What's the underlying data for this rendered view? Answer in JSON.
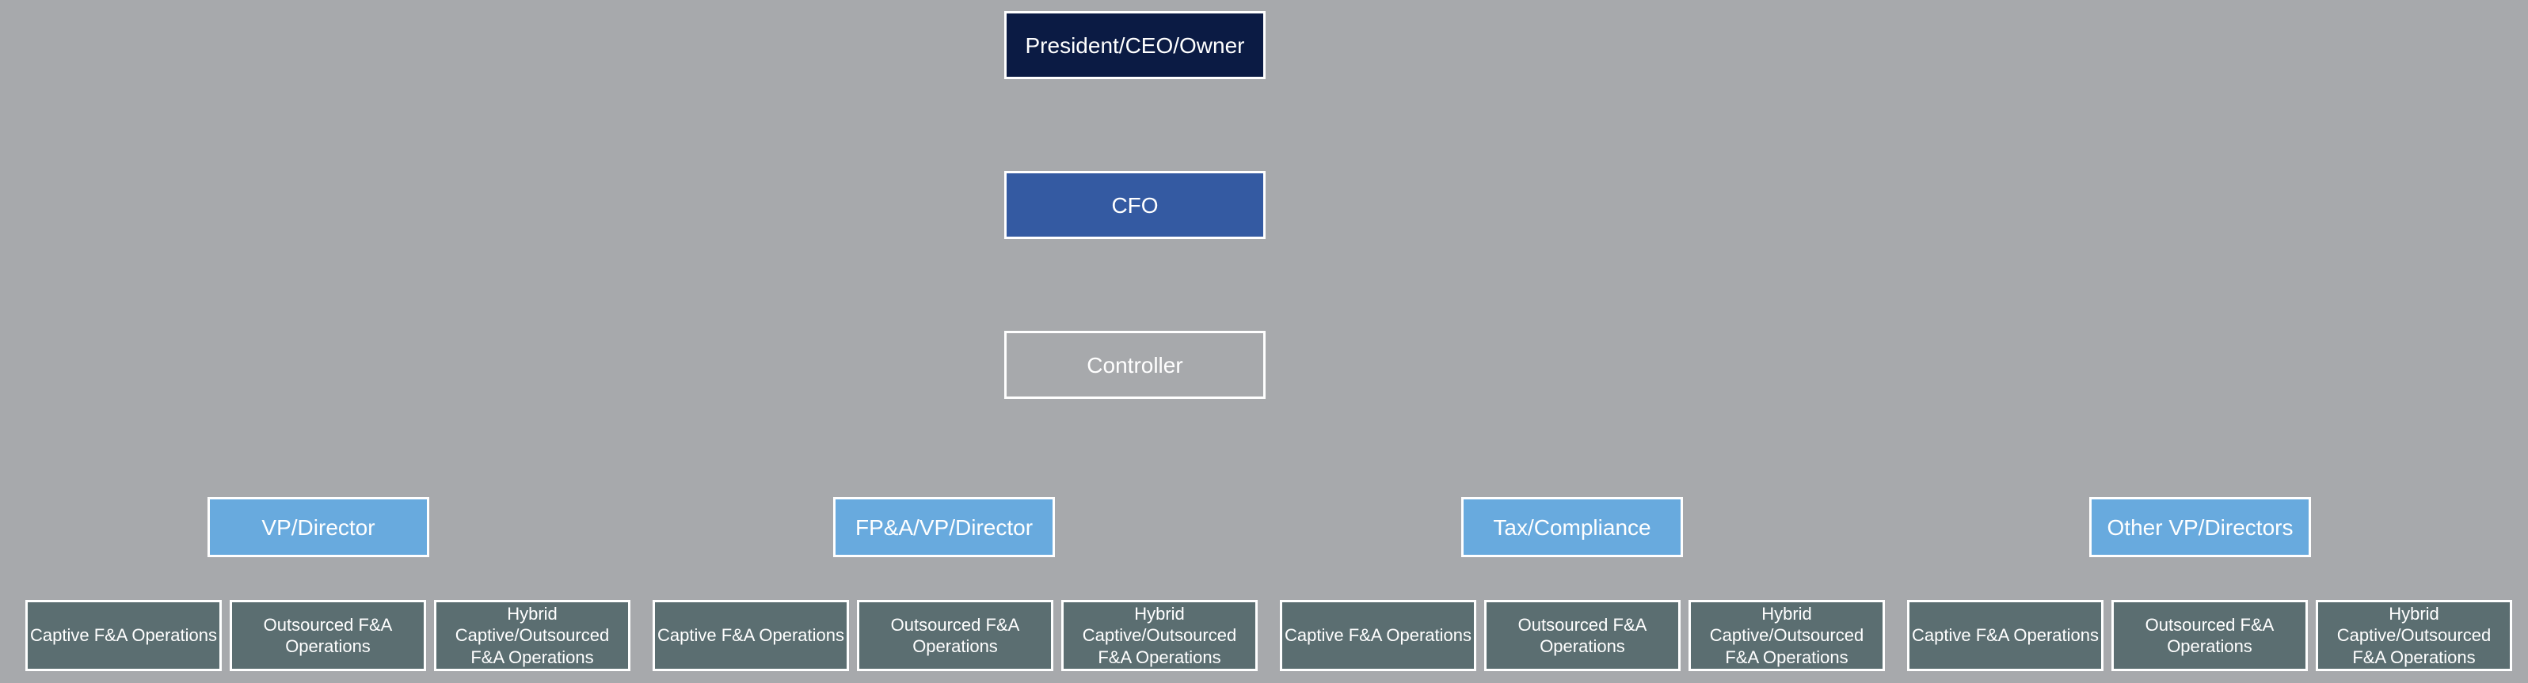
{
  "diagram": {
    "type": "tree",
    "background_color": "#a7a9ac",
    "node_border_color": "#ffffff",
    "node_border_width": 3,
    "text_color": "#ffffff",
    "top_chain_font_size": 28,
    "header_font_size": 28,
    "leaf_font_size": 22,
    "colors": {
      "ceo": "#0b1b44",
      "cfo": "#345aa2",
      "controller": "#a7a9ac",
      "group": "#68aade",
      "leaf": "#5b6e71"
    },
    "top_chain": [
      {
        "id": "ceo",
        "label": "President/CEO/Owner"
      },
      {
        "id": "cfo",
        "label": "CFO"
      },
      {
        "id": "controller",
        "label": "Controller"
      }
    ],
    "groups": [
      {
        "header": "VP/Director",
        "leaves": [
          "Captive F&A Operations",
          "Outsourced F&A Operations",
          "Hybrid Captive/Outsourced F&A Operations"
        ]
      },
      {
        "header": "FP&A/VP/Director",
        "leaves": [
          "Captive F&A Operations",
          "Outsourced F&A Operations",
          "Hybrid Captive/Outsourced F&A Operations"
        ]
      },
      {
        "header": "Tax/Compliance",
        "leaves": [
          "Captive F&A Operations",
          "Outsourced F&A Operations",
          "Hybrid Captive/Outsourced F&A Operations"
        ]
      },
      {
        "header": "Other VP/Directors",
        "leaves": [
          "Captive F&A Operations",
          "Outsourced F&A Operations",
          "Hybrid Captive/Outsourced F&A Operations"
        ]
      }
    ]
  }
}
